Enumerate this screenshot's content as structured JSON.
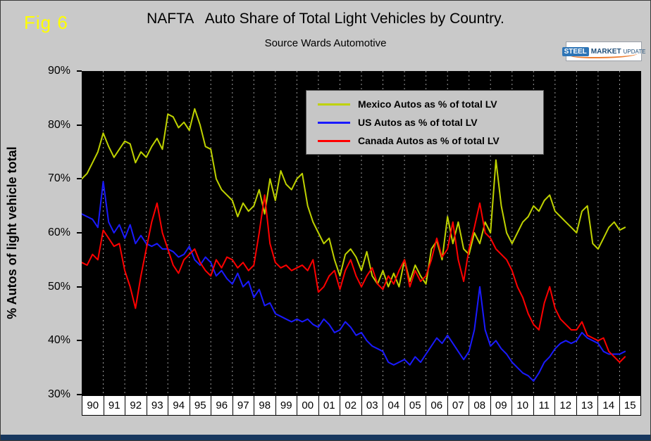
{
  "fig_label": "Fig 6",
  "title": "NAFTA   Auto Share of Total Light Vehicles by Country.",
  "subtitle": "Source Wards Automotive",
  "logo": {
    "steel": "STEEL",
    "market": "MARKET",
    "update": "UPDATE"
  },
  "y_axis": {
    "title": "% Autos of light vehicle total",
    "ticks": [
      {
        "value": 90,
        "label": "90%"
      },
      {
        "value": 80,
        "label": "80%"
      },
      {
        "value": 70,
        "label": "70%"
      },
      {
        "value": 60,
        "label": "60%"
      },
      {
        "value": 50,
        "label": "50%"
      },
      {
        "value": 40,
        "label": "40%"
      },
      {
        "value": 30,
        "label": "30%"
      }
    ]
  },
  "x_axis": {
    "years": [
      "90",
      "91",
      "92",
      "93",
      "94",
      "95",
      "96",
      "97",
      "98",
      "99",
      "00",
      "01",
      "02",
      "03",
      "04",
      "05",
      "06",
      "07",
      "08",
      "09",
      "10",
      "11",
      "12",
      "13",
      "14",
      "15"
    ]
  },
  "legend": {
    "items": [
      {
        "label": "Mexico Autos as % of total LV"
      },
      {
        "label": "US Autos as % of total LV"
      },
      {
        "label": "Canada Autos as % of total LV"
      }
    ]
  },
  "chart_data": {
    "type": "line",
    "title": "NAFTA Auto Share of Total Light Vehicles by Country.",
    "subtitle": "Source Wards Automotive",
    "ylabel": "% Autos of light vehicle total",
    "x_range": [
      1990,
      2016
    ],
    "y_range": [
      30,
      90
    ],
    "x_start": 1990.0,
    "x_step": 0.25,
    "x_unit": "year (quarterly estimated samples, 1990 through early 2015)",
    "grid": "vertical dashed gray lines at each year boundary, black plot background",
    "legend_position": "top-center inside plot",
    "plot_background": "#000000",
    "series": [
      {
        "name": "Mexico Autos as % of total LV",
        "color": "#bfd200",
        "values": [
          70,
          71,
          73,
          75,
          78.5,
          76,
          74,
          75.5,
          77,
          76.5,
          73,
          75,
          74,
          76,
          77.5,
          75.5,
          82,
          81.5,
          79.5,
          80.5,
          79,
          83,
          80,
          76,
          75.5,
          70,
          68,
          67,
          66,
          63,
          65.5,
          64,
          65,
          68,
          63.5,
          70,
          66,
          71.5,
          69,
          68,
          70,
          71,
          65,
          62,
          60,
          58,
          59,
          55,
          52,
          56,
          57,
          55.5,
          53,
          56.5,
          52,
          50.5,
          53,
          50,
          52.5,
          50,
          55,
          51,
          54,
          52,
          50.5,
          57,
          58.5,
          55,
          63,
          58,
          62,
          57,
          56,
          60,
          58,
          62,
          60,
          73.5,
          65,
          60,
          58,
          60,
          62,
          63,
          65,
          64,
          66,
          67,
          64,
          63,
          62,
          61,
          60,
          64,
          65,
          58,
          57,
          59,
          61,
          62,
          60.5,
          61
        ]
      },
      {
        "name": "US Autos as % of total LV",
        "color": "#1a1aff",
        "values": [
          63.5,
          63,
          62.5,
          61,
          69.5,
          62,
          60,
          61.5,
          59,
          61.5,
          58,
          59.5,
          58,
          57.5,
          58,
          57,
          57,
          56.5,
          55.5,
          56,
          57.5,
          55,
          54,
          55.5,
          54.5,
          52,
          53,
          51.5,
          50.5,
          52.5,
          50,
          51,
          48,
          49.5,
          46.5,
          47,
          45,
          44.5,
          44,
          43.5,
          44,
          43.5,
          44,
          43,
          42.5,
          44,
          43,
          41.5,
          42,
          43.5,
          42.5,
          41,
          41.5,
          40,
          39,
          38.5,
          38,
          36,
          35.5,
          36,
          36.5,
          35.5,
          37,
          36,
          37.5,
          39,
          40.5,
          39.5,
          41,
          39.5,
          38,
          36.5,
          38,
          42,
          50,
          42,
          39,
          40,
          38.5,
          37.5,
          36,
          35,
          34,
          33.5,
          32.5,
          34,
          36,
          37,
          38.5,
          39.5,
          40,
          39.5,
          40,
          41.5,
          40.5,
          40,
          39.5,
          38,
          37.5,
          37.5,
          37.5,
          38
        ]
      },
      {
        "name": "Canada Autos as % of total LV",
        "color": "#ff0000",
        "values": [
          54.5,
          54,
          56,
          55,
          60.5,
          59,
          57.5,
          58,
          53,
          50,
          46,
          52,
          57,
          62,
          65.5,
          60,
          57,
          54,
          52.5,
          55,
          56,
          57,
          54.5,
          53,
          52,
          55,
          53.5,
          55.5,
          55,
          53.5,
          54.5,
          53,
          54,
          60,
          67,
          58,
          54.5,
          53.5,
          54,
          53,
          53.5,
          54,
          53,
          55,
          49,
          50,
          52,
          53,
          49.5,
          53,
          55,
          52,
          50,
          52,
          53.5,
          50.5,
          49.5,
          52,
          50.5,
          53,
          55,
          50,
          53,
          51,
          52,
          55,
          59,
          55.5,
          57,
          62,
          55,
          51,
          57,
          61,
          65.5,
          60,
          59,
          57,
          56,
          55,
          53,
          50,
          48,
          45,
          43,
          42,
          47,
          50,
          46,
          44,
          43,
          42,
          42,
          43.5,
          41,
          40.5,
          40,
          40.5,
          38,
          37,
          36,
          37
        ]
      }
    ]
  }
}
